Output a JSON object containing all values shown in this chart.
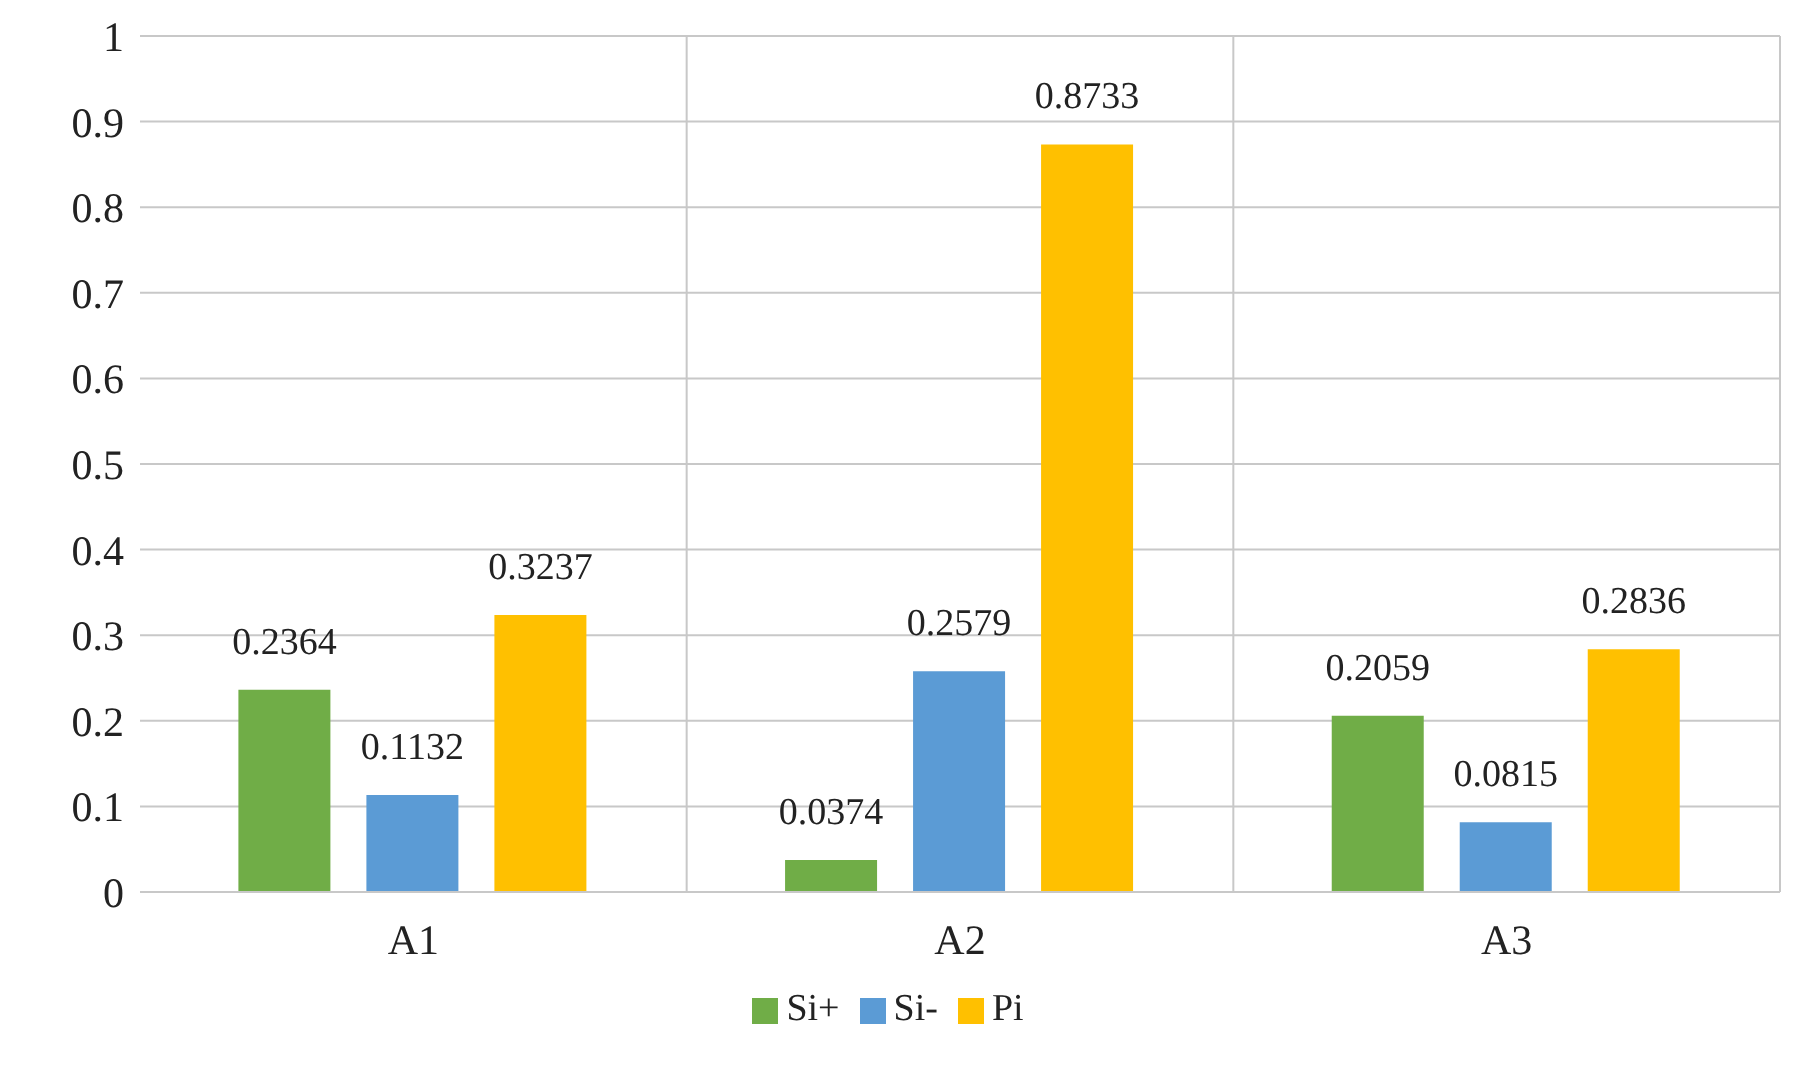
{
  "chart_data": {
    "type": "bar",
    "categories": [
      "A1",
      "A2",
      "A3"
    ],
    "series": [
      {
        "name": "Si+",
        "color": "#70ad47",
        "values": [
          0.2364,
          0.0374,
          0.2059
        ]
      },
      {
        "name": "Si-",
        "color": "#5b9bd5",
        "values": [
          0.1132,
          0.2579,
          0.0815
        ]
      },
      {
        "name": "Pi",
        "color": "#ffc000",
        "values": [
          0.3237,
          0.8733,
          0.2836
        ]
      }
    ],
    "ylim": [
      0,
      1
    ],
    "yticks": [
      0,
      0.1,
      0.2,
      0.3,
      0.4,
      0.5,
      0.6,
      0.7,
      0.8,
      0.9,
      1
    ],
    "grid": true,
    "legend": "bottom",
    "data_labels": true
  }
}
